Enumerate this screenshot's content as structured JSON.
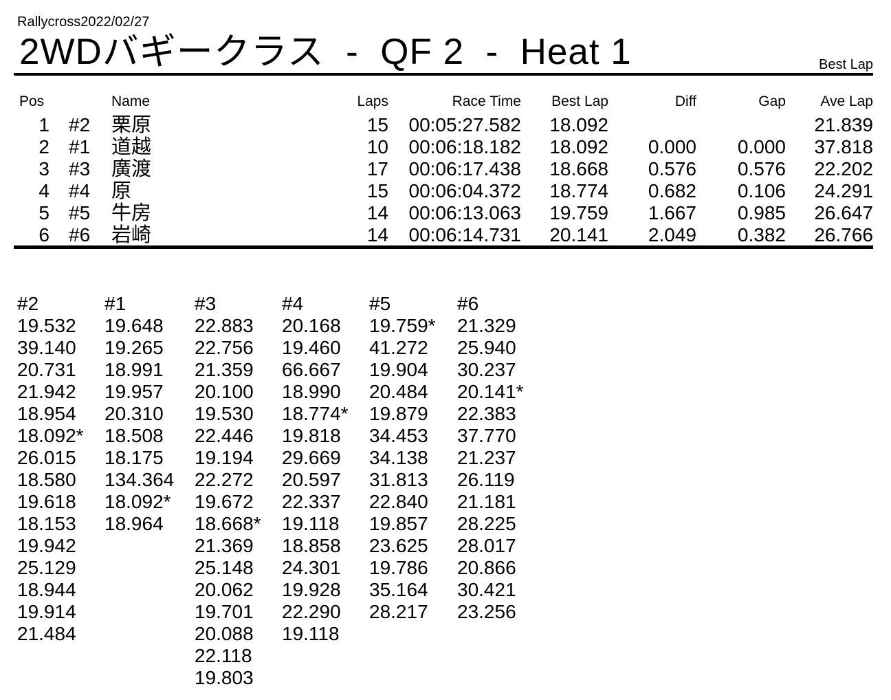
{
  "header": {
    "event_date": "Rallycross2022/02/27",
    "title": "2WDバギークラス  -  QF 2  -  Heat 1",
    "corner_label": "Best Lap"
  },
  "colors": {
    "text": "#000000",
    "background": "#ffffff"
  },
  "results": {
    "columns": [
      "Pos",
      "Name",
      "Laps",
      "Race Time",
      "Best Lap",
      "Diff",
      "Gap",
      "Ave Lap"
    ],
    "rows": [
      {
        "pos": "1",
        "car": "#2",
        "name": "栗原",
        "laps": "15",
        "race_time": "00:05:27.582",
        "best_lap": "18.092",
        "diff": "",
        "gap": "",
        "ave_lap": "21.839"
      },
      {
        "pos": "2",
        "car": "#1",
        "name": "道越",
        "laps": "10",
        "race_time": "00:06:18.182",
        "best_lap": "18.092",
        "diff": "0.000",
        "gap": "0.000",
        "ave_lap": "37.818"
      },
      {
        "pos": "3",
        "car": "#3",
        "name": "廣渡",
        "laps": "17",
        "race_time": "00:06:17.438",
        "best_lap": "18.668",
        "diff": "0.576",
        "gap": "0.576",
        "ave_lap": "22.202"
      },
      {
        "pos": "4",
        "car": "#4",
        "name": "原",
        "laps": "15",
        "race_time": "00:06:04.372",
        "best_lap": "18.774",
        "diff": "0.682",
        "gap": "0.106",
        "ave_lap": "24.291"
      },
      {
        "pos": "5",
        "car": "#5",
        "name": "牛房",
        "laps": "14",
        "race_time": "00:06:13.063",
        "best_lap": "19.759",
        "diff": "1.667",
        "gap": "0.985",
        "ave_lap": "26.647"
      },
      {
        "pos": "6",
        "car": "#6",
        "name": "岩崎",
        "laps": "14",
        "race_time": "00:06:14.731",
        "best_lap": "20.141",
        "diff": "2.049",
        "gap": "0.382",
        "ave_lap": "26.766"
      }
    ]
  },
  "lap_times": {
    "columns": [
      {
        "car": "#2",
        "laps": [
          "19.532",
          "39.140",
          "20.731",
          "21.942",
          "18.954",
          "18.092*",
          "26.015",
          "18.580",
          "19.618",
          "18.153",
          "19.942",
          "25.129",
          "18.944",
          "19.914",
          "21.484"
        ]
      },
      {
        "car": "#1",
        "laps": [
          "19.648",
          "19.265",
          "18.991",
          "19.957",
          "20.310",
          "18.508",
          "18.175",
          "134.364",
          "18.092*",
          "18.964"
        ]
      },
      {
        "car": "#3",
        "laps": [
          "22.883",
          "22.756",
          "21.359",
          "20.100",
          "19.530",
          "22.446",
          "19.194",
          "22.272",
          "19.672",
          "18.668*",
          "21.369",
          "25.148",
          "20.062",
          "19.701",
          "20.088",
          "22.118",
          "19.803"
        ]
      },
      {
        "car": "#4",
        "laps": [
          "20.168",
          "19.460",
          "66.667",
          "18.990",
          "18.774*",
          "19.818",
          "29.669",
          "20.597",
          "22.337",
          "19.118",
          "18.858",
          "24.301",
          "19.928",
          "22.290",
          "19.118"
        ]
      },
      {
        "car": "#5",
        "laps": [
          "19.759*",
          "41.272",
          "19.904",
          "20.484",
          "19.879",
          "34.453",
          "34.138",
          "31.813",
          "22.840",
          "19.857",
          "23.625",
          "19.786",
          "35.164",
          "28.217"
        ]
      },
      {
        "car": "#6",
        "laps": [
          "21.329",
          "25.940",
          "30.237",
          "20.141*",
          "22.383",
          "37.770",
          "21.237",
          "26.119",
          "21.181",
          "28.225",
          "28.017",
          "20.866",
          "30.421",
          "23.256"
        ]
      }
    ]
  }
}
